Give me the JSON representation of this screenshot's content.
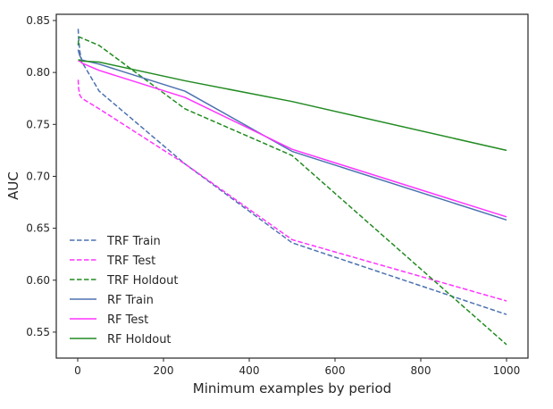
{
  "chart_data": {
    "type": "line",
    "title": "",
    "xlabel": "Minimum examples by period",
    "ylabel": "AUC",
    "xlim": [
      -50,
      1050
    ],
    "ylim": [
      0.525,
      0.856
    ],
    "xticks": [
      {
        "value": 0,
        "label": "0"
      },
      {
        "value": 200,
        "label": "200"
      },
      {
        "value": 400,
        "label": "400"
      },
      {
        "value": 600,
        "label": "600"
      },
      {
        "value": 800,
        "label": "800"
      },
      {
        "value": 1000,
        "label": "1000"
      }
    ],
    "yticks": [
      {
        "value": 0.55,
        "label": "0.55"
      },
      {
        "value": 0.6,
        "label": "0.60"
      },
      {
        "value": 0.65,
        "label": "0.65"
      },
      {
        "value": 0.7,
        "label": "0.70"
      },
      {
        "value": 0.75,
        "label": "0.75"
      },
      {
        "value": 0.8,
        "label": "0.80"
      },
      {
        "value": 0.85,
        "label": "0.85"
      }
    ],
    "grid": false,
    "legend_position": "bottom-left",
    "series": [
      {
        "name": "TRF Train",
        "color": "#4c72b0",
        "dash": "dashed",
        "x": [
          1,
          2,
          5,
          10,
          50,
          250,
          500,
          1000
        ],
        "y": [
          0.842,
          0.834,
          0.82,
          0.81,
          0.782,
          0.712,
          0.636,
          0.567
        ]
      },
      {
        "name": "TRF Test",
        "color": "#ff33ff",
        "dash": "dashed",
        "x": [
          1,
          2,
          5,
          10,
          50,
          250,
          500,
          1000
        ],
        "y": [
          0.793,
          0.785,
          0.778,
          0.775,
          0.765,
          0.712,
          0.639,
          0.58
        ]
      },
      {
        "name": "TRF Holdout",
        "color": "#228b22",
        "dash": "dashed",
        "x": [
          1,
          2,
          5,
          10,
          50,
          250,
          500,
          1000
        ],
        "y": [
          0.826,
          0.833,
          0.834,
          0.833,
          0.826,
          0.765,
          0.72,
          0.538
        ]
      },
      {
        "name": "RF Train",
        "color": "#4c72b0",
        "dash": "solid",
        "x": [
          1,
          2,
          5,
          10,
          50,
          250,
          500,
          1000
        ],
        "y": [
          0.822,
          0.82,
          0.816,
          0.812,
          0.808,
          0.782,
          0.724,
          0.658
        ]
      },
      {
        "name": "RF Test",
        "color": "#ff33ff",
        "dash": "solid",
        "x": [
          1,
          2,
          5,
          10,
          50,
          250,
          500,
          1000
        ],
        "y": [
          0.811,
          0.811,
          0.811,
          0.809,
          0.802,
          0.776,
          0.726,
          0.661
        ]
      },
      {
        "name": "RF Holdout",
        "color": "#228b22",
        "dash": "solid",
        "x": [
          1,
          2,
          5,
          10,
          50,
          250,
          500,
          1000
        ],
        "y": [
          0.812,
          0.812,
          0.812,
          0.811,
          0.81,
          0.792,
          0.772,
          0.725
        ]
      }
    ]
  }
}
